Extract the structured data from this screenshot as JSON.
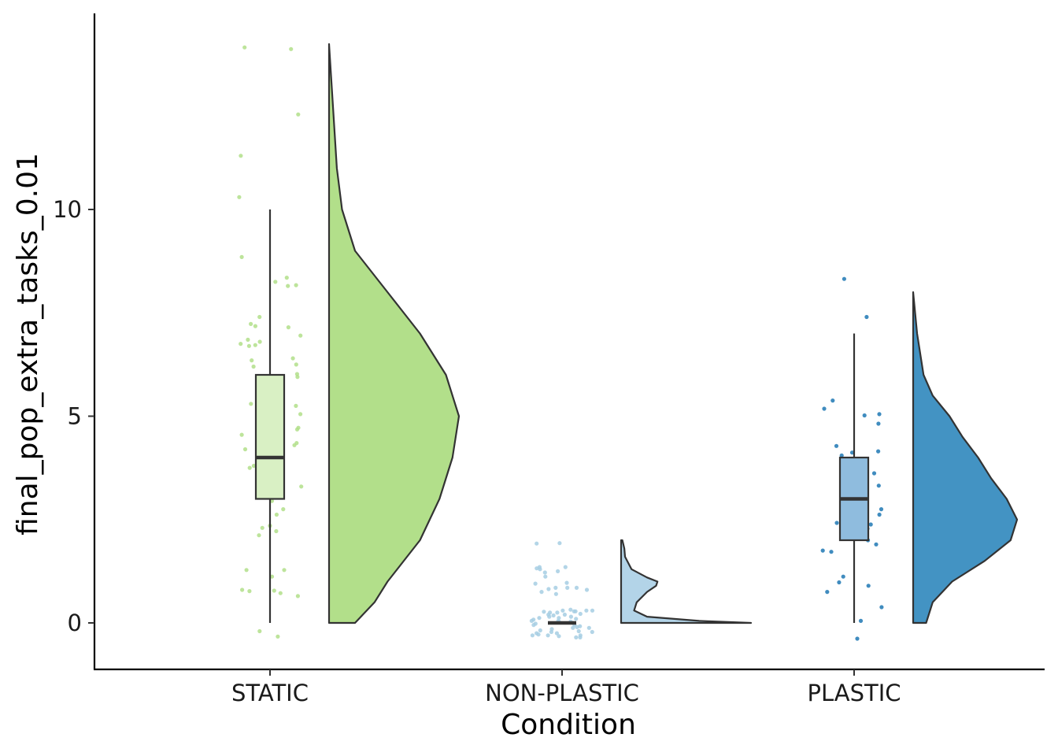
{
  "chart_data": {
    "type": "raincloud",
    "xlabel": "Condition",
    "ylabel": "final_pop_extra_tasks_0.01",
    "categories": [
      "STATIC",
      "NON-PLASTIC",
      "PLASTIC"
    ],
    "y_ticks": [
      0,
      5,
      10
    ],
    "y_tick_labels": [
      "0",
      "5",
      "10"
    ],
    "ylim": [
      -1.1,
      14.8
    ],
    "grid": false,
    "legend": "none",
    "colors": {
      "STATIC": "#b2df8a",
      "NON-PLASTIC": "#a6cee3",
      "PLASTIC": "#1f78b4"
    },
    "box_fill": {
      "STATIC": "#d9f0c4",
      "NON-PLASTIC": "#c8e2ef",
      "PLASTIC": "#8fbcde"
    },
    "violin_fill": {
      "STATIC": "#b2df8a",
      "NON-PLASTIC": "#b3d4e8",
      "PLASTIC": "#4393c3"
    },
    "boxplots": [
      {
        "group": "STATIC",
        "min": 0,
        "q1": 3,
        "median": 4,
        "q3": 6,
        "max": 10
      },
      {
        "group": "NON-PLASTIC",
        "min": 0,
        "q1": 0,
        "median": 0,
        "q3": 0,
        "max": 0
      },
      {
        "group": "PLASTIC",
        "min": 0,
        "q1": 2,
        "median": 3,
        "q3": 4,
        "max": 7
      }
    ],
    "densities": [
      {
        "group": "STATIC",
        "range": [
          0,
          14
        ],
        "profile": [
          [
            0,
            0.2
          ],
          [
            0.5,
            0.35
          ],
          [
            1,
            0.45
          ],
          [
            2,
            0.7
          ],
          [
            3,
            0.85
          ],
          [
            4,
            0.95
          ],
          [
            5,
            1.0
          ],
          [
            6,
            0.9
          ],
          [
            7,
            0.7
          ],
          [
            8,
            0.45
          ],
          [
            9,
            0.2
          ],
          [
            10,
            0.1
          ],
          [
            11,
            0.06
          ],
          [
            12,
            0.04
          ],
          [
            13,
            0.02
          ],
          [
            14,
            0
          ]
        ]
      },
      {
        "group": "NON-PLASTIC",
        "range": [
          0,
          2
        ],
        "profile": [
          [
            0,
            1.0
          ],
          [
            0.05,
            0.6
          ],
          [
            0.15,
            0.2
          ],
          [
            0.3,
            0.1
          ],
          [
            0.5,
            0.12
          ],
          [
            0.75,
            0.2
          ],
          [
            0.9,
            0.27
          ],
          [
            1.0,
            0.28
          ],
          [
            1.1,
            0.2
          ],
          [
            1.3,
            0.08
          ],
          [
            1.6,
            0.03
          ],
          [
            1.8,
            0.025
          ],
          [
            2,
            0.01
          ]
        ]
      },
      {
        "group": "PLASTIC",
        "range": [
          0,
          8
        ],
        "profile": [
          [
            0,
            0.1
          ],
          [
            0.5,
            0.15
          ],
          [
            1,
            0.3
          ],
          [
            1.5,
            0.55
          ],
          [
            2,
            0.75
          ],
          [
            2.5,
            0.8
          ],
          [
            3,
            0.72
          ],
          [
            3.5,
            0.6
          ],
          [
            4,
            0.5
          ],
          [
            4.5,
            0.38
          ],
          [
            5,
            0.28
          ],
          [
            5.5,
            0.15
          ],
          [
            6,
            0.08
          ],
          [
            7,
            0.03
          ],
          [
            8,
            0
          ]
        ]
      }
    ],
    "points": [
      {
        "group": "STATIC",
        "values": [
          13.92,
          13.88,
          12.3,
          11.3,
          10.3,
          8.85,
          8.35,
          8.25,
          8.17,
          8.15,
          7.4,
          7.23,
          7.18,
          7.15,
          6.95,
          6.85,
          6.8,
          6.75,
          6.72,
          6.7,
          6.4,
          6.35,
          6.25,
          6.2,
          6.02,
          5.95,
          5.82,
          5.6,
          5.35,
          5.3,
          5.25,
          5.1,
          5.05,
          4.72,
          4.68,
          4.55,
          4.35,
          4.3,
          4.25,
          4.2,
          4.05,
          4.0,
          3.8,
          3.75,
          3.3,
          3.1,
          2.95,
          2.75,
          2.62,
          2.35,
          2.3,
          2.22,
          2.12,
          1.28,
          1.28,
          1.12,
          0.8,
          0.78,
          0.77,
          0.72,
          0.65,
          -0.2,
          -0.33
        ]
      },
      {
        "group": "NON-PLASTIC",
        "values": [
          1.93,
          1.92,
          1.35,
          1.35,
          1.32,
          1.3,
          1.25,
          1.22,
          1.12,
          0.97,
          0.95,
          0.85,
          0.85,
          0.85,
          0.82,
          0.8,
          0.75,
          0.7,
          0.32,
          0.3,
          0.3,
          0.3,
          0.28,
          0.28,
          0.27,
          0.25,
          0.25,
          0.22,
          0.2,
          0.2,
          0.18,
          0.15,
          0.15,
          0.12,
          0.12,
          0.1,
          0.08,
          0.05,
          0.05,
          0.03,
          0.02,
          0,
          -0.02,
          -0.05,
          -0.05,
          -0.08,
          -0.1,
          -0.12,
          -0.12,
          -0.15,
          -0.18,
          -0.2,
          -0.22,
          -0.22,
          -0.25,
          -0.25,
          -0.28,
          -0.3,
          -0.3,
          -0.3,
          -0.32,
          -0.35,
          -0.35
        ]
      },
      {
        "group": "PLASTIC",
        "values": [
          8.32,
          7.4,
          5.38,
          5.18,
          5.05,
          5.02,
          4.82,
          4.28,
          4.15,
          4.12,
          4.05,
          3.85,
          3.62,
          3.4,
          3.32,
          3.15,
          2.85,
          2.75,
          2.62,
          2.42,
          2.38,
          2.35,
          2.32,
          2.28,
          2.05,
          2.0,
          1.9,
          1.75,
          1.72,
          1.12,
          0.98,
          0.9,
          0.75,
          0.38,
          0.05,
          -0.38
        ]
      }
    ]
  }
}
